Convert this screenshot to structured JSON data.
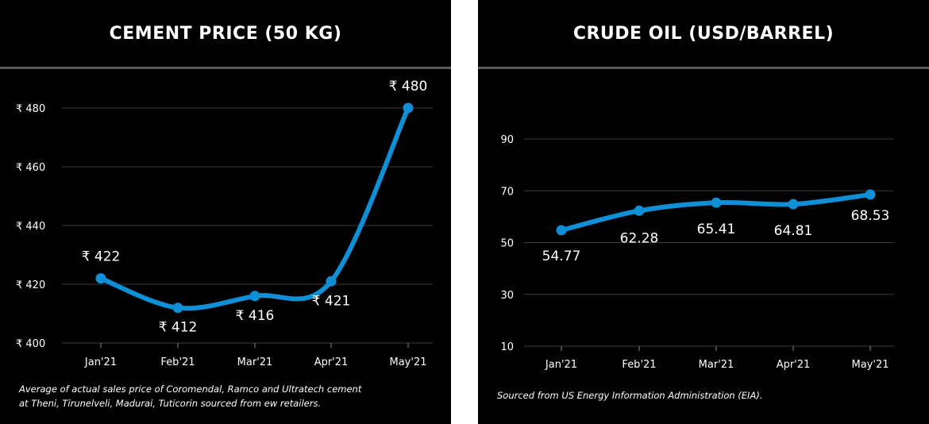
{
  "chart_data": [
    {
      "type": "line",
      "title": "CEMENT PRICE (50 KG)",
      "categories": [
        "Jan'21",
        "Feb'21",
        "Mar'21",
        "Apr'21",
        "May'21"
      ],
      "values": [
        422,
        412,
        416,
        421,
        480
      ],
      "data_labels": [
        "₹ 422",
        "₹ 412",
        "₹ 416",
        "₹ 421",
        "₹ 480"
      ],
      "yticks": [
        400,
        420,
        440,
        460,
        480
      ],
      "ytick_labels": [
        "₹ 400",
        "₹ 420",
        "₹ 440",
        "₹ 460",
        "₹ 480"
      ],
      "ylim": [
        400,
        480
      ],
      "xlabel": "",
      "ylabel": "",
      "grid": true,
      "line_color": "#0e8fd6",
      "footnote": "Average of actual sales price of Coromendal, Ramco and Ultratech cement\nat Theni, Tirunelveli, Madurai, Tuticorin sourced from ew retailers."
    },
    {
      "type": "line",
      "title": "CRUDE OIL (USD/BARREL)",
      "categories": [
        "Jan'21",
        "Feb'21",
        "Mar'21",
        "Apr'21",
        "May'21"
      ],
      "values": [
        54.77,
        62.28,
        65.41,
        64.81,
        68.53
      ],
      "data_labels": [
        "54.77",
        "62.28",
        "65.41",
        "64.81",
        "68.53"
      ],
      "yticks": [
        10,
        30,
        50,
        70,
        90
      ],
      "ytick_labels": [
        "10",
        "30",
        "50",
        "70",
        "90"
      ],
      "ylim": [
        10,
        90
      ],
      "xlabel": "",
      "ylabel": "",
      "grid": true,
      "line_color": "#0e8fd6",
      "footnote": "Sourced from US Energy Information Administration (EIA)."
    }
  ],
  "colors": {
    "background": "#000000",
    "gap": "#ffffff",
    "text": "#ffffff",
    "grid": "#3a3a3a",
    "rule": "#58595b",
    "line": "#0e8fd6"
  }
}
